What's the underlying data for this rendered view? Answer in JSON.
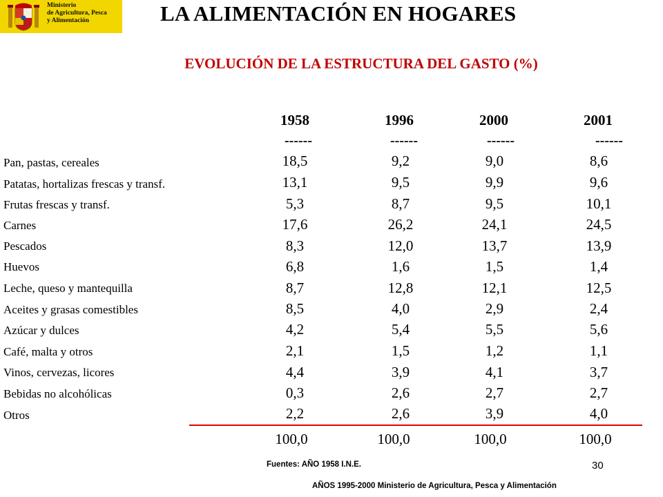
{
  "logo": {
    "line1": "Ministerio",
    "line2": "de Agricultura, Pesca",
    "line3": "y Alimentación"
  },
  "title": "LA ALIMENTACIÓN EN HOGARES",
  "subtitle": "EVOLUCIÓN DE LA ESTRUCTURA DEL GASTO (%)",
  "table": {
    "years": [
      "1958",
      "1996",
      "2000",
      "2001"
    ],
    "separator": "------",
    "rows": [
      {
        "label": "Pan, pastas, cereales",
        "values": [
          "18,5",
          "9,2",
          "9,0",
          "8,6"
        ]
      },
      {
        "label": "Patatas, hortalizas frescas y transf.",
        "values": [
          "13,1",
          "9,5",
          "9,9",
          "9,6"
        ]
      },
      {
        "label": "Frutas frescas y transf.",
        "values": [
          "5,3",
          "8,7",
          "9,5",
          "10,1"
        ]
      },
      {
        "label": "Carnes",
        "values": [
          "17,6",
          "26,2",
          "24,1",
          "24,5"
        ]
      },
      {
        "label": "Pescados",
        "values": [
          "8,3",
          "12,0",
          "13,7",
          "13,9"
        ]
      },
      {
        "label": "Huevos",
        "values": [
          "6,8",
          "1,6",
          "1,5",
          "1,4"
        ]
      },
      {
        "label": "Leche, queso y mantequilla",
        "values": [
          "8,7",
          "12,8",
          "12,1",
          "12,5"
        ]
      },
      {
        "label": "Aceites y grasas comestibles",
        "values": [
          "8,5",
          "4,0",
          "2,9",
          "2,4"
        ]
      },
      {
        "label": "Azúcar y dulces",
        "values": [
          "4,2",
          "5,4",
          "5,5",
          "5,6"
        ]
      },
      {
        "label": "Café, malta y otros",
        "values": [
          "2,1",
          "1,5",
          "1,2",
          "1,1"
        ]
      },
      {
        "label": "Vinos, cervezas, licores",
        "values": [
          "4,4",
          "3,9",
          "4,1",
          "3,7"
        ]
      },
      {
        "label": "Bebidas no alcohólicas",
        "values": [
          "0,3",
          "2,6",
          "2,7",
          "2,7"
        ]
      },
      {
        "label": "Otros",
        "values": [
          "2,2",
          "2,6",
          "3,9",
          "4,0"
        ]
      }
    ],
    "totals": [
      "100,0",
      "100,0",
      "100,0",
      "100,0"
    ]
  },
  "sources": {
    "line1": "Fuentes: AÑO 1958 I.N.E.",
    "line2": "AÑOS 1995-2000 Ministerio de Agricultura, Pesca y Alimentación"
  },
  "page_number": "30",
  "colors": {
    "logo_bg": "#f2d600",
    "subtitle": "#c00000",
    "rule": "#e00000"
  }
}
